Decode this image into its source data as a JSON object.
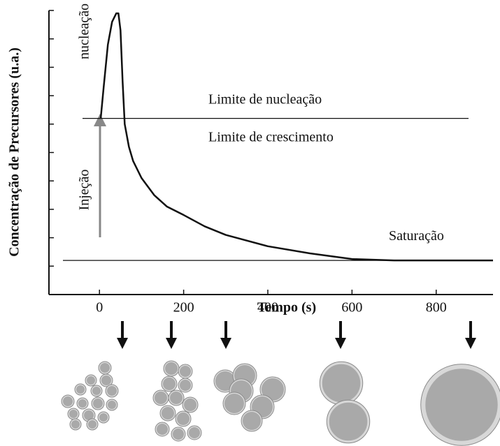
{
  "chart_data": {
    "type": "line",
    "x_label": "Tempo (s)",
    "y_label": "Concentração de Precursores (u.a.)",
    "x": [
      3,
      10,
      20,
      30,
      40,
      45,
      50,
      55,
      60,
      70,
      80,
      100,
      130,
      160,
      200,
      250,
      300,
      400,
      500,
      600,
      700,
      800,
      935
    ],
    "series": [
      {
        "color": "#111111",
        "values": [
          6.2,
          7.3,
          8.8,
          9.6,
          9.9,
          9.9,
          9.3,
          7.5,
          6.0,
          5.2,
          4.7,
          4.1,
          3.5,
          3.1,
          2.8,
          2.4,
          2.1,
          1.7,
          1.45,
          1.25,
          1.2,
          1.2,
          1.2
        ]
      }
    ],
    "xlim": [
      -120,
      935
    ],
    "ylim": [
      0,
      10
    ],
    "xticks": [
      0,
      200,
      400,
      600,
      800
    ],
    "yticks": [
      1,
      2,
      3,
      4,
      5,
      6,
      7,
      8,
      9,
      10
    ],
    "reference_lines": [
      {
        "name": "Limite de nucleação",
        "value": 6.2
      },
      {
        "name": "Saturação",
        "value": 1.2
      }
    ],
    "annotations": [
      "Limite de crescimento",
      "nucleação",
      "Injeção"
    ]
  }
}
